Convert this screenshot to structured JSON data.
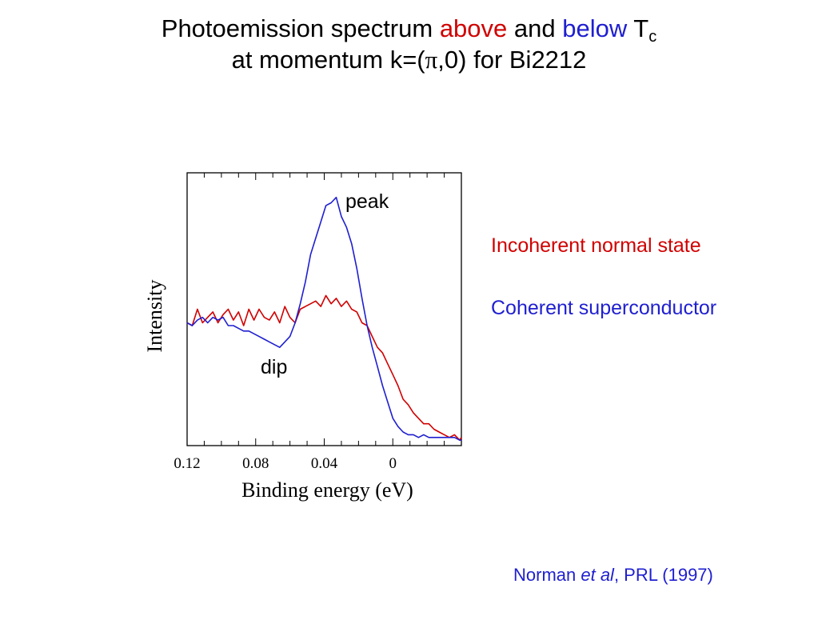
{
  "title": {
    "line1_prefix": "Photoemission spectrum ",
    "word_above": "above",
    "word_and": " and ",
    "word_below": "below",
    "t_symbol": " T",
    "t_subscript": "c",
    "line2_prefix": "at momentum k=(",
    "pi": "π",
    "line2_suffix": ",0) for Bi2212"
  },
  "legend": {
    "normal": "Incoherent normal state",
    "super": "Coherent superconductor"
  },
  "annotations": {
    "peak": "peak",
    "dip": "dip"
  },
  "citation": {
    "author": "Norman ",
    "etal": "et al",
    "journal": ", PRL (1997)"
  },
  "colors": {
    "normal": "#d00000",
    "super": "#1f1fd0",
    "axis": "#000000"
  },
  "chart_data": {
    "type": "line",
    "xlabel": "Binding energy (eV)",
    "ylabel": "Intensity",
    "x_axis_direction": "reversed (binding energy increases to the left)",
    "xlim": [
      0.12,
      -0.04
    ],
    "ylim": [
      0,
      1
    ],
    "y_tick_labels": "none",
    "x_ticks": [
      {
        "value": 0.12,
        "label": "0.12"
      },
      {
        "value": 0.08,
        "label": "0.08"
      },
      {
        "value": 0.04,
        "label": "0.04"
      },
      {
        "value": 0,
        "label": "0"
      }
    ],
    "grid": false,
    "legend": "text labels at right of plot, colored by series",
    "annotations": [
      {
        "text": "peak",
        "x": 0.027,
        "y": 0.91
      },
      {
        "text": "dip",
        "x": 0.064,
        "y": 0.28
      }
    ],
    "series": [
      {
        "name": "Incoherent normal state",
        "color": "#d00000",
        "x": [
          0.12,
          0.117,
          0.114,
          0.111,
          0.108,
          0.105,
          0.102,
          0.099,
          0.096,
          0.093,
          0.09,
          0.087,
          0.084,
          0.081,
          0.078,
          0.075,
          0.072,
          0.069,
          0.066,
          0.063,
          0.06,
          0.057,
          0.054,
          0.051,
          0.048,
          0.045,
          0.042,
          0.039,
          0.036,
          0.033,
          0.03,
          0.027,
          0.024,
          0.021,
          0.018,
          0.015,
          0.012,
          0.009,
          0.006,
          0.003,
          0.0,
          -0.003,
          -0.006,
          -0.009,
          -0.012,
          -0.015,
          -0.018,
          -0.021,
          -0.024,
          -0.027,
          -0.03,
          -0.033,
          -0.036,
          -0.039,
          -0.04
        ],
        "y": [
          0.45,
          0.44,
          0.5,
          0.45,
          0.47,
          0.49,
          0.45,
          0.48,
          0.5,
          0.46,
          0.49,
          0.44,
          0.5,
          0.46,
          0.5,
          0.47,
          0.46,
          0.49,
          0.45,
          0.51,
          0.47,
          0.45,
          0.5,
          0.51,
          0.52,
          0.53,
          0.51,
          0.55,
          0.52,
          0.54,
          0.51,
          0.53,
          0.5,
          0.49,
          0.45,
          0.44,
          0.4,
          0.36,
          0.34,
          0.3,
          0.26,
          0.22,
          0.17,
          0.15,
          0.12,
          0.1,
          0.08,
          0.08,
          0.06,
          0.05,
          0.04,
          0.03,
          0.04,
          0.02,
          0.03
        ]
      },
      {
        "name": "Coherent superconductor",
        "color": "#1f1fd0",
        "x": [
          0.12,
          0.117,
          0.114,
          0.111,
          0.108,
          0.105,
          0.102,
          0.099,
          0.096,
          0.093,
          0.09,
          0.087,
          0.084,
          0.081,
          0.078,
          0.075,
          0.072,
          0.069,
          0.066,
          0.063,
          0.06,
          0.057,
          0.054,
          0.051,
          0.048,
          0.045,
          0.042,
          0.039,
          0.036,
          0.033,
          0.03,
          0.027,
          0.024,
          0.021,
          0.018,
          0.015,
          0.012,
          0.009,
          0.006,
          0.003,
          0.0,
          -0.003,
          -0.006,
          -0.009,
          -0.012,
          -0.015,
          -0.018,
          -0.021,
          -0.024,
          -0.027,
          -0.03,
          -0.033,
          -0.036,
          -0.039,
          -0.04
        ],
        "y": [
          0.45,
          0.44,
          0.46,
          0.47,
          0.45,
          0.47,
          0.46,
          0.47,
          0.44,
          0.44,
          0.43,
          0.42,
          0.42,
          0.41,
          0.4,
          0.39,
          0.38,
          0.37,
          0.36,
          0.38,
          0.4,
          0.45,
          0.52,
          0.6,
          0.7,
          0.76,
          0.82,
          0.88,
          0.89,
          0.91,
          0.84,
          0.8,
          0.74,
          0.65,
          0.54,
          0.44,
          0.36,
          0.29,
          0.22,
          0.16,
          0.1,
          0.07,
          0.05,
          0.04,
          0.04,
          0.03,
          0.04,
          0.03,
          0.03,
          0.03,
          0.03,
          0.03,
          0.03,
          0.02,
          0.02
        ]
      }
    ]
  }
}
